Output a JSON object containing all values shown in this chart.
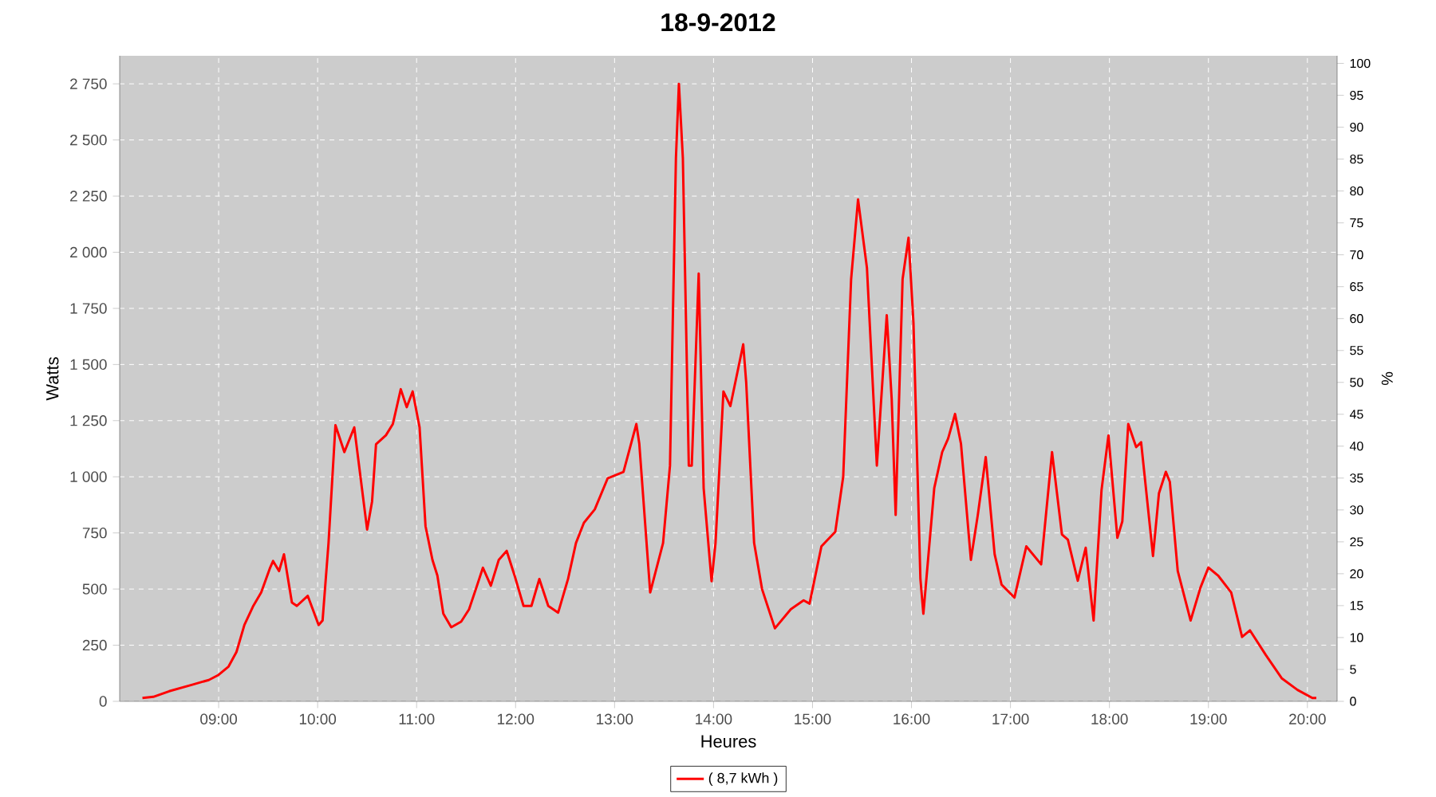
{
  "chart_data": {
    "type": "line",
    "title": "18-9-2012",
    "xlabel": "Heures",
    "ylabel": "Watts",
    "y2label": "%",
    "xlim": [
      8.0,
      20.3
    ],
    "ylim": [
      0,
      2875
    ],
    "y2lim": [
      0,
      101.2
    ],
    "xticks": [
      {
        "value": 9,
        "label": "09:00"
      },
      {
        "value": 10,
        "label": "10:00"
      },
      {
        "value": 11,
        "label": "11:00"
      },
      {
        "value": 12,
        "label": "12:00"
      },
      {
        "value": 13,
        "label": "13:00"
      },
      {
        "value": 14,
        "label": "14:00"
      },
      {
        "value": 15,
        "label": "15:00"
      },
      {
        "value": 16,
        "label": "16:00"
      },
      {
        "value": 17,
        "label": "17:00"
      },
      {
        "value": 18,
        "label": "18:00"
      },
      {
        "value": 19,
        "label": "19:00"
      },
      {
        "value": 20,
        "label": "20:00"
      }
    ],
    "yticks": [
      0,
      250,
      500,
      750,
      {
        "value": 1000,
        "label": "1 000"
      },
      {
        "value": 1250,
        "label": "1 250"
      },
      {
        "value": 1500,
        "label": "1 500"
      },
      {
        "value": 1750,
        "label": "1 750"
      },
      {
        "value": 2000,
        "label": "2 000"
      },
      {
        "value": 2250,
        "label": "2 250"
      },
      {
        "value": 2500,
        "label": "2 500"
      },
      {
        "value": 2750,
        "label": "2 750"
      }
    ],
    "y2ticks": [
      0,
      5,
      10,
      15,
      20,
      25,
      30,
      35,
      40,
      45,
      50,
      55,
      60,
      65,
      70,
      75,
      80,
      85,
      90,
      95,
      100
    ],
    "grid": true,
    "legend": "bottom",
    "marker": "none",
    "line_style": "solid",
    "series": [
      {
        "name": "( 8,7 kWh )",
        "color": "#ff0000",
        "x": [
          8.23,
          8.34,
          8.5,
          8.74,
          8.9,
          9.0,
          9.1,
          9.18,
          9.26,
          9.35,
          9.43,
          9.52,
          9.55,
          9.61,
          9.66,
          9.74,
          9.79,
          9.9,
          10.01,
          10.05,
          10.11,
          10.18,
          10.27,
          10.37,
          10.5,
          10.55,
          10.59,
          10.69,
          10.76,
          10.84,
          10.9,
          10.96,
          11.03,
          11.09,
          11.16,
          11.21,
          11.27,
          11.35,
          11.45,
          11.53,
          11.61,
          11.67,
          11.75,
          11.83,
          11.91,
          11.99,
          12.08,
          12.16,
          12.24,
          12.33,
          12.43,
          12.53,
          12.61,
          12.69,
          12.8,
          12.93,
          13.09,
          13.22,
          13.25,
          13.36,
          13.49,
          13.56,
          13.62,
          13.65,
          13.69,
          13.75,
          13.78,
          13.85,
          13.9,
          13.98,
          14.02,
          14.1,
          14.17,
          14.3,
          14.33,
          14.41,
          14.49,
          14.62,
          14.78,
          14.91,
          14.97,
          15.09,
          15.23,
          15.31,
          15.39,
          15.46,
          15.55,
          15.65,
          15.75,
          15.8,
          15.84,
          15.91,
          15.97,
          16.02,
          16.09,
          16.12,
          16.23,
          16.31,
          16.37,
          16.44,
          16.5,
          16.6,
          16.67,
          16.75,
          16.84,
          16.91,
          17.04,
          17.16,
          17.31,
          17.42,
          17.52,
          17.58,
          17.68,
          17.76,
          17.84,
          17.92,
          17.99,
          18.08,
          18.13,
          18.19,
          18.27,
          18.32,
          18.44,
          18.5,
          18.57,
          18.61,
          18.69,
          18.82,
          18.92,
          19.0,
          19.1,
          19.23,
          19.34,
          19.42,
          19.58,
          19.74,
          19.9,
          20.05,
          20.09
        ],
        "values": [
          15,
          20,
          45,
          75,
          95,
          118,
          155,
          220,
          340,
          425,
          485,
          595,
          625,
          580,
          655,
          440,
          425,
          470,
          340,
          360,
          705,
          1230,
          1110,
          1220,
          765,
          890,
          1145,
          1185,
          1235,
          1390,
          1310,
          1380,
          1220,
          780,
          630,
          560,
          390,
          330,
          355,
          410,
          515,
          595,
          515,
          630,
          670,
          560,
          425,
          425,
          545,
          425,
          395,
          545,
          705,
          795,
          855,
          993,
          1022,
          1235,
          1147,
          485,
          705,
          1050,
          2420,
          2750,
          2420,
          1050,
          1050,
          1905,
          950,
          535,
          705,
          1380,
          1315,
          1590,
          1420,
          705,
          500,
          325,
          410,
          450,
          435,
          690,
          755,
          1000,
          1880,
          2235,
          1930,
          1050,
          1720,
          1345,
          830,
          1880,
          2065,
          1685,
          545,
          390,
          950,
          1110,
          1170,
          1280,
          1147,
          630,
          830,
          1088,
          655,
          520,
          462,
          690,
          610,
          1110,
          743,
          720,
          537,
          684,
          360,
          941,
          1184,
          728,
          801,
          1235,
          1132,
          1154,
          647,
          926,
          1022,
          978,
          581,
          360,
          507,
          596,
          559,
          485,
          287,
          316,
          206,
          103,
          51,
          15,
          15
        ]
      }
    ]
  }
}
